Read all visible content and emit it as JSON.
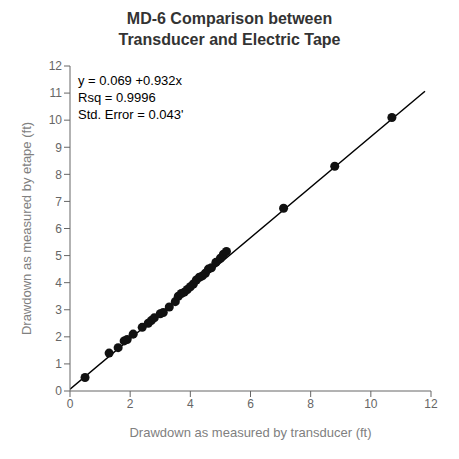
{
  "chart_data": {
    "type": "scatter",
    "title": "MD-6 Comparison between\nTransducer and Electric Tape",
    "xlabel": "Drawdown as measured by transducer (ft)",
    "ylabel": "Drawdown as measured by etape (ft)",
    "annotation": "y = 0.069 +0.932x\nRsq = 0.9996\nStd. Error = 0.043'",
    "series": [
      {
        "type": "scatter",
        "color": "#111111",
        "marker": "circle",
        "x": [
          0.5,
          1.3,
          1.6,
          1.8,
          1.9,
          2.1,
          2.4,
          2.6,
          2.7,
          2.8,
          3.0,
          3.1,
          3.3,
          3.5,
          3.6,
          3.7,
          3.8,
          3.9,
          4.0,
          4.1,
          4.2,
          4.3,
          4.4,
          4.5,
          4.6,
          4.7,
          4.85,
          5.0,
          5.1,
          5.2,
          7.1,
          8.8,
          10.7
        ],
        "values": [
          0.5,
          1.4,
          1.6,
          1.85,
          1.9,
          2.1,
          2.35,
          2.5,
          2.6,
          2.7,
          2.85,
          2.9,
          3.1,
          3.3,
          3.5,
          3.6,
          3.65,
          3.75,
          3.85,
          3.95,
          4.1,
          4.2,
          4.25,
          4.35,
          4.5,
          4.55,
          4.75,
          4.9,
          5.05,
          5.15,
          6.75,
          8.3,
          10.1
        ]
      },
      {
        "type": "line",
        "color": "#000000",
        "line_style": "solid",
        "x": [
          0.0,
          11.8
        ],
        "values": [
          0.069,
          11.0666
        ]
      }
    ],
    "xlim": [
      0,
      12
    ],
    "ylim": [
      0,
      12
    ],
    "xticks": [
      0,
      2,
      4,
      6,
      8,
      10,
      12
    ],
    "yticks": [
      0,
      1,
      2,
      3,
      4,
      5,
      6,
      7,
      8,
      9,
      10,
      11,
      12
    ],
    "grid": false
  }
}
